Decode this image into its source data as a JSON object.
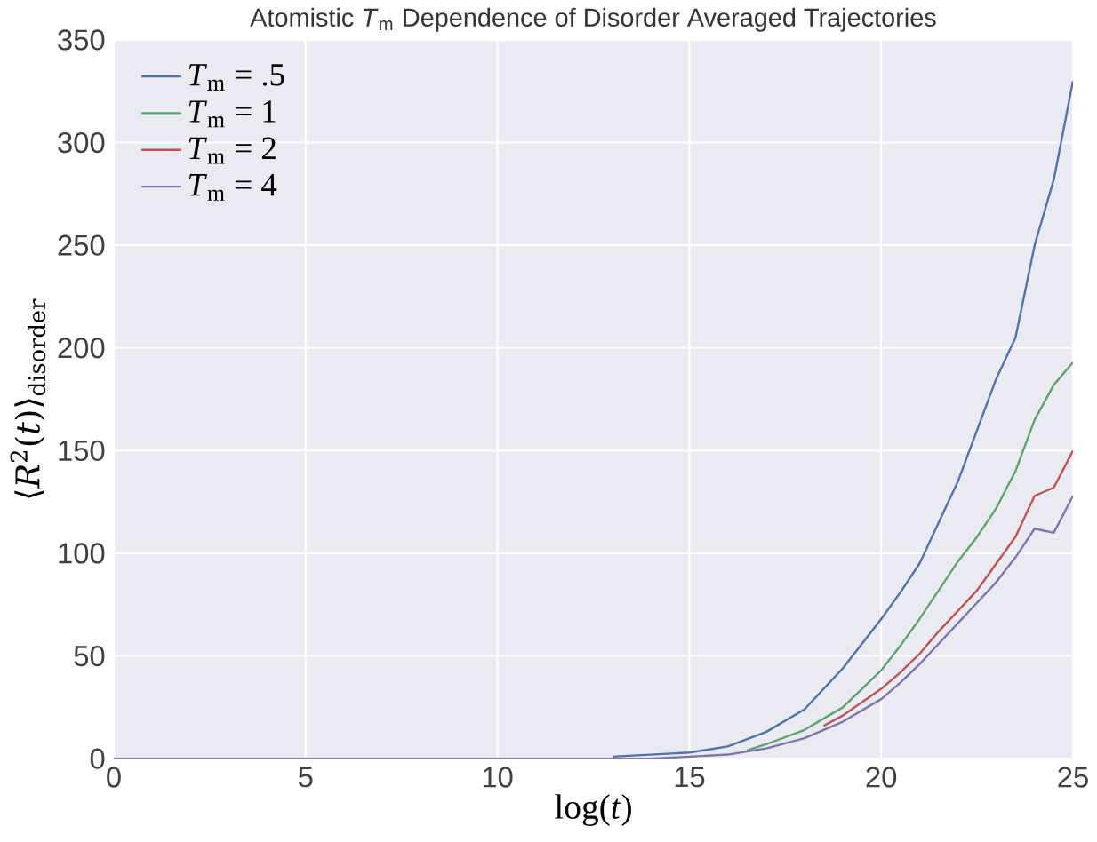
{
  "chart_data": {
    "type": "line",
    "title": "Atomistic *T*$_{m}$ Dependence of Disorder Averaged Trajectories",
    "xlabel": "log(*t*)",
    "ylabel": "⟨*R*$^{2}$(*t*)⟩$_{disorder}$",
    "series": [
      {
        "name": "*T*$_{m}$ = .5",
        "color": "#4c72b0",
        "x": [
          13,
          15,
          16,
          17,
          18,
          19,
          20,
          20.5,
          21,
          21.5,
          22,
          22.5,
          23,
          23.5,
          24,
          24.5,
          25
        ],
        "values": [
          1,
          3,
          6,
          13,
          24,
          44,
          68,
          81,
          95,
          115,
          135,
          160,
          185,
          205,
          250,
          282,
          330
        ]
      },
      {
        "name": "*T*$_{m}$ = 1",
        "color": "#55a868",
        "x": [
          16.5,
          17,
          18,
          19,
          20,
          20.5,
          21,
          21.5,
          22,
          22.5,
          23,
          23.5,
          24,
          24.5,
          25
        ],
        "values": [
          4,
          7,
          14,
          25,
          43,
          55,
          68,
          82,
          96,
          108,
          122,
          140,
          165,
          182,
          193
        ]
      },
      {
        "name": "*T*$_{m}$ = 2",
        "color": "#c44e52",
        "x": [
          18.5,
          19,
          20,
          20.5,
          21,
          21.5,
          22,
          22.5,
          23,
          23.5,
          24,
          24.5,
          25
        ],
        "values": [
          16,
          21,
          34,
          42,
          51,
          62,
          72,
          82,
          95,
          108,
          128,
          132,
          150
        ]
      },
      {
        "name": "*T*$_{m}$ = 4",
        "color": "#8172b2",
        "x": [
          0,
          14,
          16,
          17,
          18,
          19,
          20,
          20.5,
          21,
          21.5,
          22,
          22.5,
          23,
          23.5,
          24,
          24.5,
          25
        ],
        "values": [
          0,
          0,
          2,
          5,
          10,
          18,
          29,
          37,
          46,
          56,
          66,
          76,
          86,
          98,
          112,
          110,
          128
        ]
      }
    ],
    "xlim": [
      0,
      25
    ],
    "xticks": [
      0,
      5,
      10,
      15,
      20,
      25
    ],
    "ylim": [
      0,
      350
    ],
    "yticks": [
      0,
      50,
      100,
      150,
      200,
      250,
      300,
      350
    ],
    "grid": true,
    "legend": "top left"
  }
}
